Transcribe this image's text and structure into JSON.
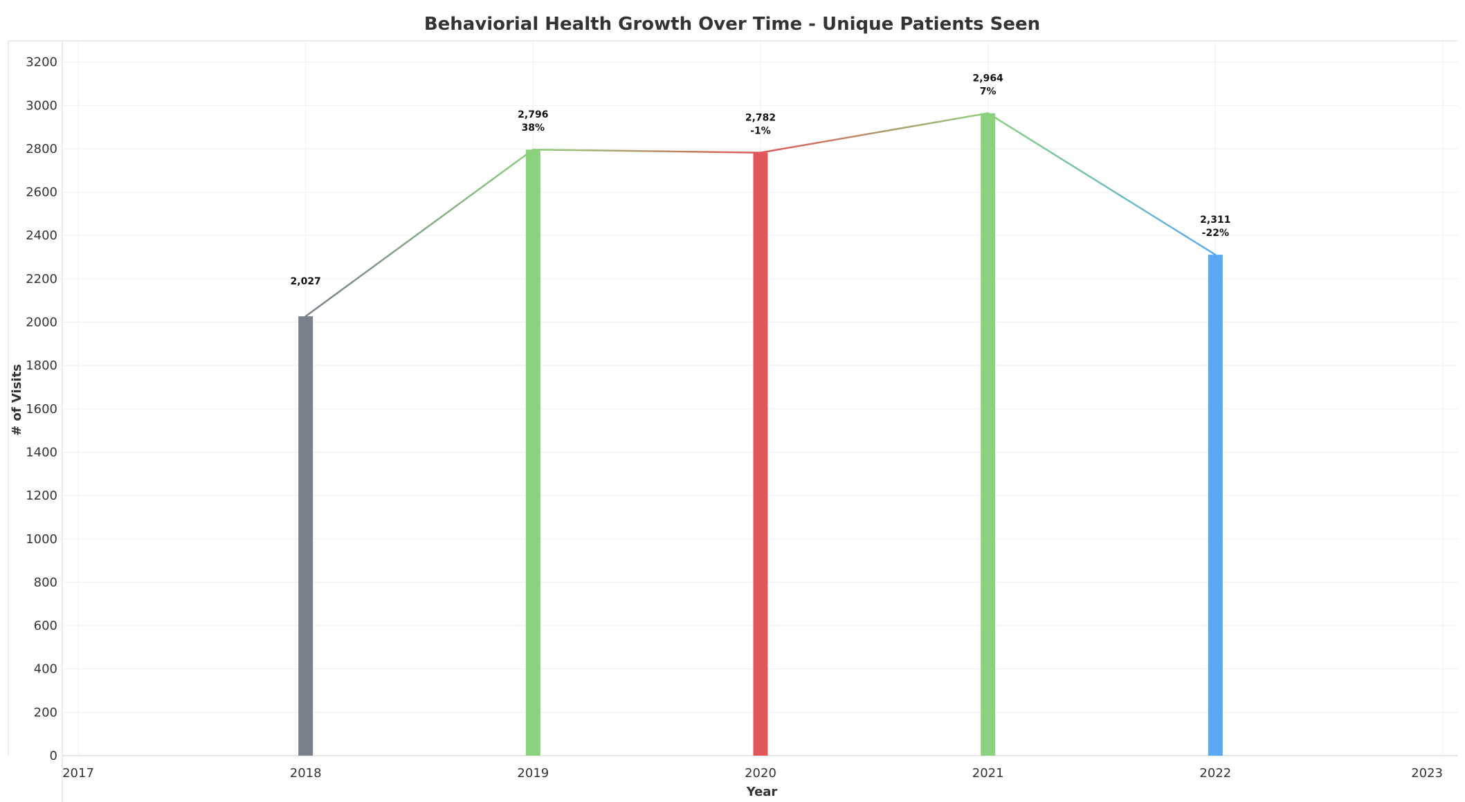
{
  "chart_data": {
    "type": "bar",
    "title": "Behaviorial Health Growth Over Time - Unique Patients Seen",
    "xlabel": "Year",
    "ylabel": "# of Visits",
    "x_ticks": [
      "2017",
      "2018",
      "2019",
      "2020",
      "2021",
      "2022",
      "2023"
    ],
    "xlim": [
      2017,
      2023
    ],
    "y_ticks": [
      "0",
      "200",
      "400",
      "600",
      "800",
      "1000",
      "1200",
      "1400",
      "1600",
      "1800",
      "2000",
      "2200",
      "2400",
      "2600",
      "2800",
      "3000",
      "3200"
    ],
    "ylim": [
      0,
      3250
    ],
    "grid": true,
    "overlay_line": true,
    "points": [
      {
        "year": 2018,
        "value": 2027,
        "value_label": "2,027",
        "pct_label": "",
        "color": "#7b818c"
      },
      {
        "year": 2019,
        "value": 2796,
        "value_label": "2,796",
        "pct_label": "38%",
        "color": "#8cd17d"
      },
      {
        "year": 2020,
        "value": 2782,
        "value_label": "2,782",
        "pct_label": "-1%",
        "color": "#e15759"
      },
      {
        "year": 2021,
        "value": 2964,
        "value_label": "2,964",
        "pct_label": "7%",
        "color": "#8cd17d"
      },
      {
        "year": 2022,
        "value": 2311,
        "value_label": "2,311",
        "pct_label": "-22%",
        "color": "#5aa9f5"
      }
    ],
    "line_segment_colors": [
      "#8cd17d",
      "#e15759",
      "#8cd17d",
      "#5aa9f5"
    ],
    "line_start_color": "#7b818c"
  }
}
